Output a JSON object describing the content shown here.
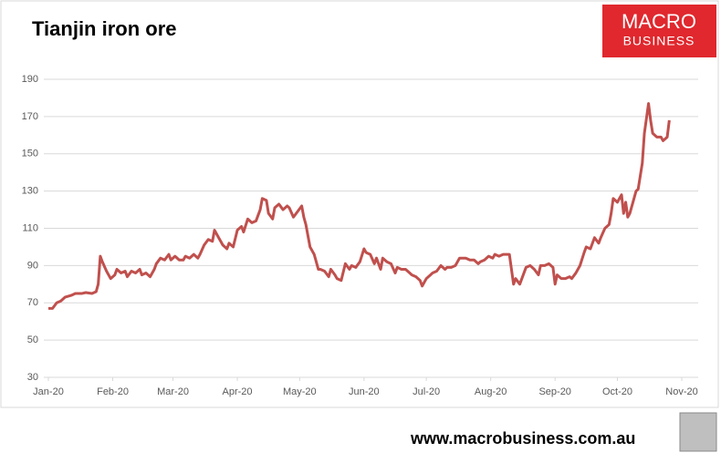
{
  "chart_data": {
    "type": "line",
    "title": "Tianjin iron ore",
    "xlim": [
      0,
      305
    ],
    "xticks": [
      {
        "value": 0,
        "label": "Jan-20"
      },
      {
        "value": 31,
        "label": "Feb-20"
      },
      {
        "value": 60,
        "label": "Mar-20"
      },
      {
        "value": 91,
        "label": "Apr-20"
      },
      {
        "value": 121,
        "label": "May-20"
      },
      {
        "value": 152,
        "label": "Jun-20"
      },
      {
        "value": 182,
        "label": "Jul-20"
      },
      {
        "value": 213,
        "label": "Aug-20"
      },
      {
        "value": 244,
        "label": "Sep-20"
      },
      {
        "value": 274,
        "label": "Oct-20"
      },
      {
        "value": 305,
        "label": "Nov-20"
      }
    ],
    "ylim": [
      30,
      190
    ],
    "yticks": [
      30,
      50,
      70,
      90,
      110,
      130,
      150,
      170,
      190
    ],
    "grid": true,
    "series": [
      {
        "color": "#c0504d",
        "x": [
          0,
          2,
          4,
          6,
          8,
          11,
          13,
          16,
          18,
          21,
          23,
          24,
          25,
          26,
          28,
          30,
          32,
          33,
          35,
          37,
          38,
          40,
          42,
          44,
          45,
          47,
          49,
          51,
          52,
          54,
          56,
          58,
          59,
          61,
          63,
          65,
          66,
          68,
          70,
          72,
          73,
          75,
          77,
          79,
          80,
          82,
          84,
          86,
          87,
          89,
          91,
          93,
          94,
          96,
          98,
          100,
          102,
          103,
          105,
          106,
          108,
          109,
          111,
          113,
          115,
          116,
          118,
          120,
          122,
          123,
          124,
          126,
          128,
          130,
          131,
          133,
          135,
          136,
          138,
          139,
          141,
          143,
          145,
          146,
          148,
          150,
          152,
          153,
          155,
          157,
          158,
          160,
          161,
          163,
          165,
          167,
          168,
          170,
          172,
          174,
          175,
          177,
          179,
          180,
          182,
          184,
          185,
          187,
          189,
          191,
          192,
          194,
          196,
          198,
          200,
          201,
          203,
          205,
          207,
          208,
          210,
          212,
          214,
          215,
          217,
          219,
          221,
          222,
          224,
          225,
          227,
          229,
          230,
          232,
          234,
          236,
          237,
          239,
          241,
          243,
          244,
          245,
          247,
          249,
          251,
          252,
          254,
          256,
          258,
          259,
          261,
          263,
          265,
          266,
          268,
          270,
          271,
          272,
          274,
          276,
          277,
          278,
          279,
          280,
          282,
          283,
          284,
          286,
          287,
          289,
          290,
          291,
          293,
          295,
          296,
          298,
          299
        ],
        "values": [
          67,
          67,
          70,
          71,
          73,
          74,
          75,
          75,
          75.5,
          75,
          76,
          80,
          95,
          92,
          87,
          83,
          85,
          88,
          86,
          87,
          84,
          87,
          86,
          88,
          85,
          86,
          84,
          88,
          91,
          94,
          93,
          96,
          93,
          95,
          93,
          93,
          95,
          94,
          96,
          94,
          96,
          101,
          104,
          103,
          109,
          105,
          101,
          99,
          102,
          100,
          109,
          111,
          108,
          115,
          113,
          114,
          120,
          126,
          125,
          118,
          115,
          121,
          123,
          120,
          122,
          121,
          116,
          119,
          122,
          116,
          112,
          100,
          96,
          88,
          88,
          87,
          84,
          88,
          85,
          83,
          82,
          91,
          88,
          90,
          89,
          92,
          99,
          97,
          96,
          91,
          94,
          88,
          94,
          92,
          91,
          86,
          89,
          88,
          88,
          86,
          85,
          84,
          82,
          79,
          83,
          85,
          86,
          87,
          90,
          88,
          89,
          89,
          90,
          94,
          94,
          94,
          93,
          93,
          91,
          92,
          93,
          95,
          94,
          96,
          95,
          96,
          96,
          96,
          80,
          83,
          80,
          86,
          89,
          90,
          88,
          85,
          90,
          90,
          91,
          89,
          80,
          85,
          83,
          83,
          84,
          83,
          86,
          90,
          97,
          100,
          99,
          105,
          102,
          105,
          110,
          112,
          118,
          126,
          124,
          128,
          118,
          124,
          116,
          118,
          126,
          130,
          131,
          145,
          161,
          177,
          168,
          161,
          159,
          159,
          157,
          159,
          168
        ]
      }
    ]
  },
  "logo": [
    "MACRO",
    "BUSINESS"
  ],
  "footer": "www.macrobusiness.com.au"
}
